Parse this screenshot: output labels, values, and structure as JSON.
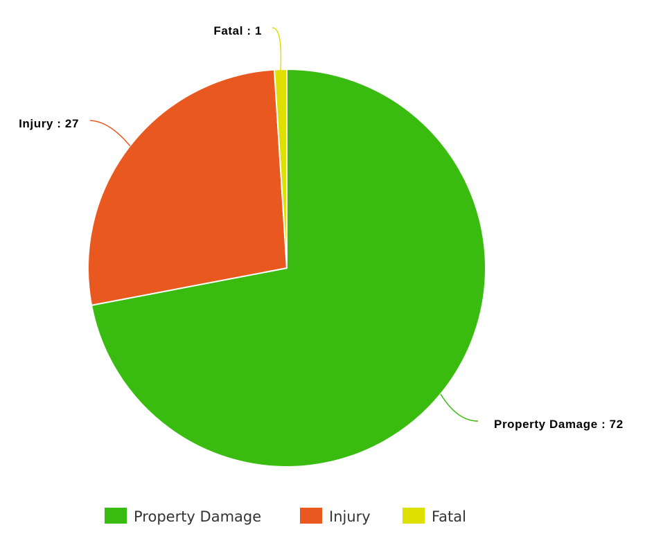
{
  "chart_data": {
    "type": "pie",
    "title": "",
    "slices": [
      {
        "name": "Property Damage",
        "value": 72,
        "color": "#39bb10",
        "label": "Property Damage : 72"
      },
      {
        "name": "Injury",
        "value": 27,
        "color": "#e9581f",
        "label": "Injury : 27"
      },
      {
        "name": "Fatal",
        "value": 1,
        "color": "#dde000",
        "label": "Fatal : 1"
      }
    ],
    "legend": {
      "position": "bottom",
      "items": [
        "Property Damage",
        "Injury",
        "Fatal"
      ]
    }
  }
}
